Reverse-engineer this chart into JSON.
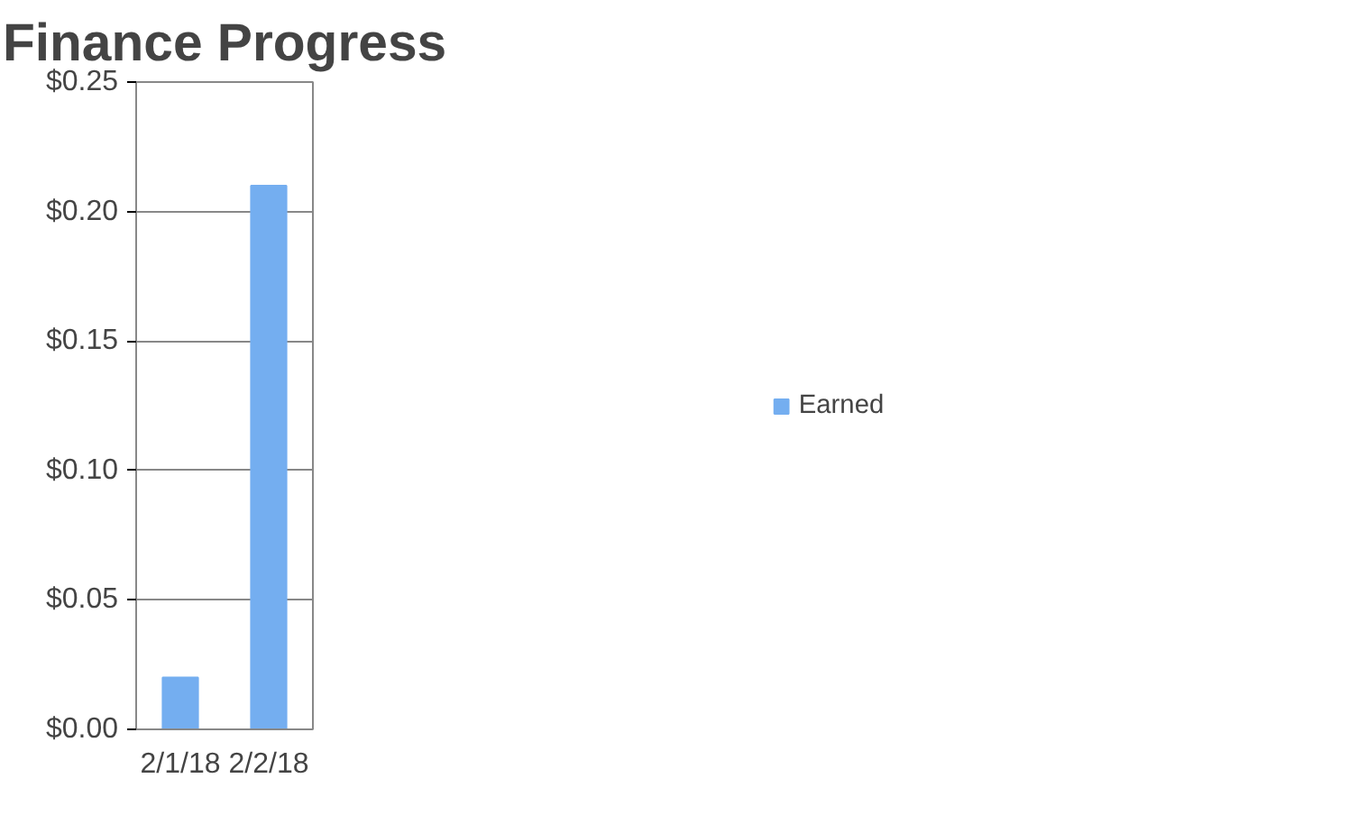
{
  "chart_data": {
    "type": "bar",
    "title": "Finance Progress",
    "categories": [
      "2/1/18",
      "2/2/18"
    ],
    "series": [
      {
        "name": "Earned",
        "color": "#74aef0",
        "values": [
          0.02,
          0.21
        ]
      }
    ],
    "ylim": [
      0,
      0.25
    ],
    "yticks": [
      {
        "value": 0,
        "label": "$0.00"
      },
      {
        "value": 0.05,
        "label": "$0.05"
      },
      {
        "value": 0.1,
        "label": "$0.10"
      },
      {
        "value": 0.15,
        "label": "$0.15"
      },
      {
        "value": 0.2,
        "label": "$0.20"
      },
      {
        "value": 0.25,
        "label": "$0.25"
      }
    ],
    "grid": "y",
    "legend": "right"
  }
}
